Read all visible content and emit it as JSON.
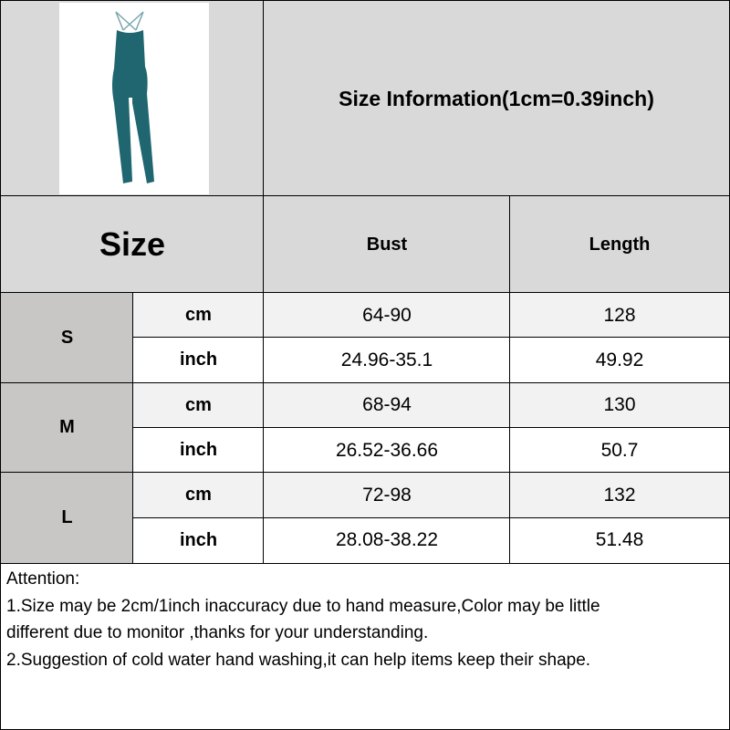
{
  "product_image": {
    "icon": "teal-jumpsuit-image",
    "color": "#1f6670"
  },
  "title": "Size Information(1cm=0.39inch)",
  "header": {
    "size": "Size",
    "columns": [
      "Bust",
      "Length"
    ]
  },
  "rows": [
    {
      "size": "S",
      "cm": {
        "unit": "cm",
        "bust": "64-90",
        "length": "128"
      },
      "inch": {
        "unit": "inch",
        "bust": "24.96-35.1",
        "length": "49.92"
      }
    },
    {
      "size": "M",
      "cm": {
        "unit": "cm",
        "bust": "68-94",
        "length": "130"
      },
      "inch": {
        "unit": "inch",
        "bust": "26.52-36.66",
        "length": "50.7"
      }
    },
    {
      "size": "L",
      "cm": {
        "unit": "cm",
        "bust": "72-98",
        "length": "132"
      },
      "inch": {
        "unit": "inch",
        "bust": "28.08-38.22",
        "length": "51.48"
      }
    }
  ],
  "notes": [
    "Attention:",
    "1.Size may be 2cm/1inch inaccuracy due to hand measure,Color may be little",
    "different due to monitor ,thanks for your understanding.",
    "2.Suggestion of cold water hand washing,it can help items keep their shape."
  ]
}
